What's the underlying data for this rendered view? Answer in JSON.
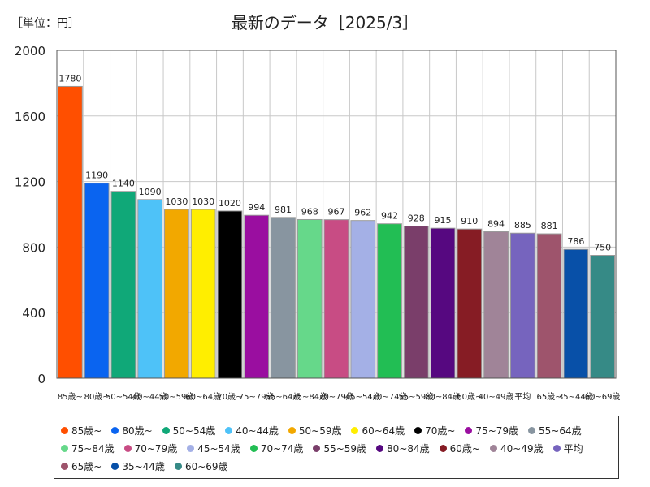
{
  "header": {
    "unit_label": "［単位：円］"
  },
  "chart_data": {
    "type": "bar",
    "title": "最新のデータ［2025/3］",
    "xlabel": "",
    "ylabel": "",
    "ylim": [
      0,
      2000
    ],
    "yticks": [
      0,
      400,
      800,
      1200,
      1600,
      2000
    ],
    "grid": true,
    "legend_position": "bottom",
    "categories": [
      "85歳~",
      "80歳~",
      "50~54歳",
      "40~44歳",
      "50~59歳",
      "60~64歳",
      "70歳~",
      "75~79歳",
      "55~64歳",
      "75~84歳",
      "70~79歳",
      "45~54歳",
      "70~74歳",
      "55~59歳",
      "80~84歳",
      "60歳~",
      "40~49歳",
      "平均",
      "65歳~",
      "35~44歳",
      "60~69歳"
    ],
    "values": [
      1780,
      1190,
      1140,
      1090,
      1030,
      1030,
      1020,
      994,
      981,
      968,
      967,
      962,
      942,
      928,
      915,
      910,
      894,
      885,
      881,
      786,
      750
    ],
    "colors": [
      "#ff4f00",
      "#0a64f0",
      "#10a878",
      "#4ec2f8",
      "#f2a800",
      "#ffee00",
      "#000000",
      "#9a0ea0",
      "#8895a0",
      "#66d88a",
      "#c84c84",
      "#a4b0e6",
      "#22be54",
      "#7a3e6a",
      "#560880",
      "#861c24",
      "#a08498",
      "#7664be",
      "#9e546c",
      "#0850a8",
      "#368a86"
    ],
    "legend_labels": [
      "85歳~",
      "80歳~",
      "50~54歳",
      "40~44歳",
      "50~59歳",
      "60~64歳",
      "70歳~",
      "75~79歳",
      "55~64歳",
      "75~84歳",
      "70~79歳",
      "45~54歳",
      "70~74歳",
      "55~59歳",
      "80~84歳",
      "60歳~",
      "40~49歳",
      "平均",
      "65歳~",
      "35~44歳",
      "60~69歳"
    ]
  }
}
